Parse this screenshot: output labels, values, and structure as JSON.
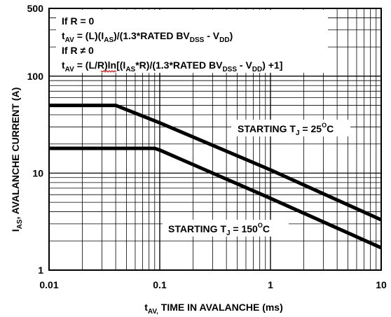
{
  "chart_data": {
    "type": "line",
    "title": "",
    "xlabel": "t_AV, TIME IN AVALANCHE (ms)",
    "ylabel": "I_AS, AVALANCHE CURRENT (A)",
    "x_scale": "log",
    "y_scale": "log",
    "xlim": [
      0.01,
      10
    ],
    "ylim": [
      1,
      500
    ],
    "grid": true,
    "x_ticks": [
      "0.01",
      "0.1",
      "1",
      "10"
    ],
    "y_ticks": [
      "1",
      "10",
      "100",
      "500"
    ],
    "series": [
      {
        "name": "STARTING T_J = 25°C",
        "label_main": "STARTING T",
        "label_sub": "J",
        "label_rest": " = 25",
        "label_sup": "O",
        "label_unit": "C",
        "points": [
          [
            0.01,
            50
          ],
          [
            0.04,
            50
          ],
          [
            0.1,
            33
          ],
          [
            1,
            10.8
          ],
          [
            10,
            3.3
          ]
        ]
      },
      {
        "name": "STARTING T_J = 150°C",
        "label_main": "STARTING T",
        "label_sub": "J",
        "label_rest": " = 150",
        "label_sup": "O",
        "label_unit": "C",
        "points": [
          [
            0.01,
            18
          ],
          [
            0.09,
            18
          ],
          [
            0.1,
            17.3
          ],
          [
            1,
            5.5
          ],
          [
            10,
            1.7
          ]
        ]
      }
    ],
    "annotations": {
      "line1": "If R = 0",
      "line2_main": "t",
      "line2_sub": "AV",
      "line2_rest": " = (L)(I",
      "line2_sub2": "AS",
      "line2_rest2": ")/(1.3*RATED BV",
      "line2_sub3": "DSS",
      "line2_rest3": " - V",
      "line2_sub4": "DD",
      "line2_end": ")",
      "line3": "If R  ≠  0",
      "line4_main": "t",
      "line4_sub": "AV",
      "line4_rest": " = (L/R)ln[(I",
      "line4_sub2": "AS",
      "line4_rest2": "*R)/(1.3*RATED BV",
      "line4_sub3": "DSS",
      "line4_rest3": " - V",
      "line4_sub4": "DD",
      "line4_end": ") +1]"
    }
  }
}
